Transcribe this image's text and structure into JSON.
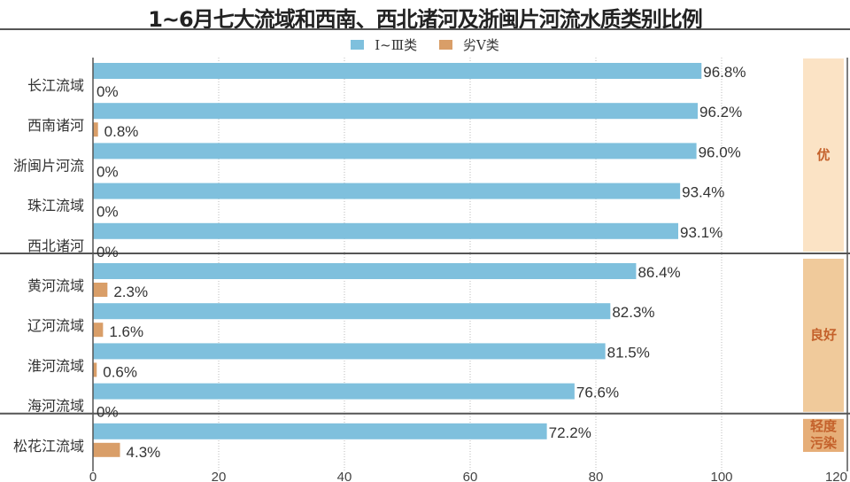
{
  "chart_data": {
    "type": "bar",
    "orientation": "horizontal",
    "title": "1~6月七大流域和西南、西北诸河及浙闽片河流水质类别比例",
    "categories": [
      "长江流域",
      "西南诸河",
      "浙闽片河流",
      "珠江流域",
      "西北诸河",
      "黄河流域",
      "辽河流域",
      "淮河流域",
      "海河流域",
      "松花江流域"
    ],
    "series": [
      {
        "name": "Ⅰ~Ⅲ类",
        "color": "#7fc0dd",
        "values": [
          96.8,
          96.2,
          96.0,
          93.4,
          93.1,
          86.4,
          82.3,
          81.5,
          76.6,
          72.2
        ],
        "labels": [
          "96.8%",
          "96.2%",
          "96.0%",
          "93.4%",
          "93.1%",
          "86.4%",
          "82.3%",
          "81.5%",
          "76.6%",
          "72.2%"
        ]
      },
      {
        "name": "劣Ⅴ类",
        "color": "#d99e68",
        "values": [
          0,
          0.8,
          0,
          0,
          0,
          2.3,
          1.6,
          0.6,
          0,
          4.3
        ],
        "labels": [
          "0%",
          "0.8%",
          "0%",
          "0%",
          "0%",
          "2.3%",
          "1.6%",
          "0.6%",
          "0%",
          "4.3%"
        ]
      }
    ],
    "xlim": [
      0,
      120
    ],
    "xticks": [
      "0",
      "20",
      "40",
      "60",
      "80",
      "100",
      "120"
    ],
    "grid": true,
    "legend": "top-center",
    "groups": [
      {
        "label": "优",
        "from": 0,
        "to": 4,
        "color": "#fbe3c5"
      },
      {
        "label": "良好",
        "from": 5,
        "to": 8,
        "color": "#f0ca9b"
      },
      {
        "label": "轻度污染",
        "from": 9,
        "to": 9,
        "color": "#e6ae78"
      }
    ],
    "group_text_color": "#c4612b"
  }
}
